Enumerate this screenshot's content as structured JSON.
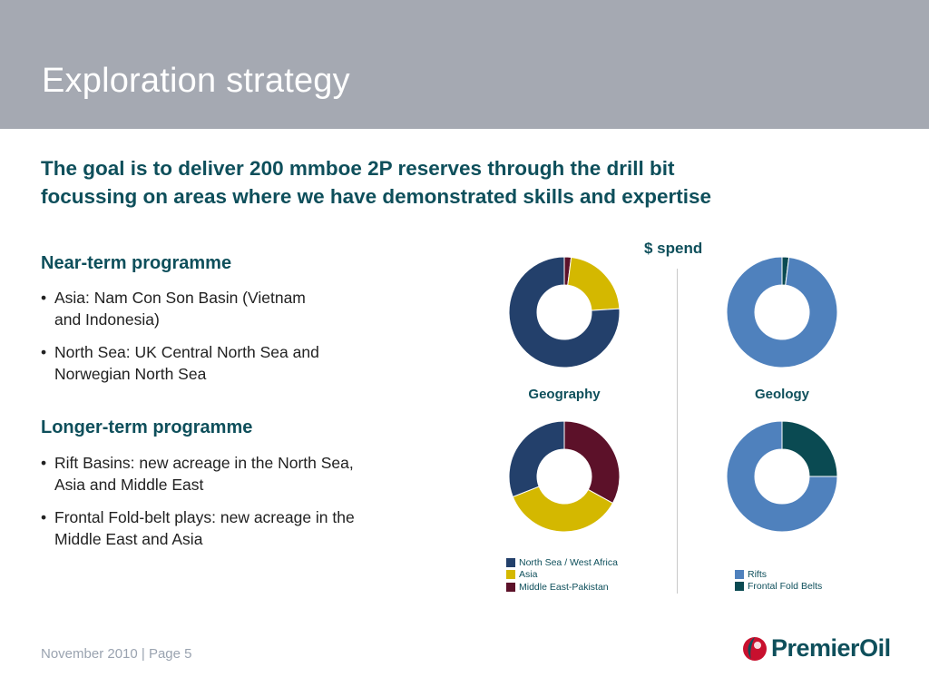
{
  "header": {
    "title": "Exploration strategy"
  },
  "subtitle": {
    "line1": "The goal is to deliver 200 mmboe 2P reserves through the drill bit",
    "line2": "focussing on areas where we have demonstrated skills and expertise"
  },
  "near_term": {
    "heading": "Near-term programme",
    "bullets": [
      [
        "Asia: Nam Con Son Basin (Vietnam",
        "and Indonesia)"
      ],
      [
        "North Sea: UK Central North Sea and",
        "Norwegian North Sea"
      ]
    ]
  },
  "longer_term": {
    "heading": "Longer-term programme",
    "bullets": [
      [
        "Rift Basins: new acreage in the North Sea,",
        "Asia and Middle East"
      ],
      [
        "Frontal Fold-belt plays: new acreage in the",
        "Middle East and Asia"
      ]
    ]
  },
  "bullet_glyph": "•",
  "spend_label": "$ spend",
  "geography_caption": "Geography",
  "geology_caption": "Geology",
  "chart_data": [
    {
      "type": "pie",
      "group": "Geography",
      "row": "top",
      "title": "",
      "slices": [
        {
          "category": "Middle East-Pakistan",
          "value": 2,
          "color": "#5c1129"
        },
        {
          "category": "Asia",
          "value": 22,
          "color": "#d4b800"
        },
        {
          "category": "North Sea / West Africa",
          "value": 76,
          "color": "#23406b"
        }
      ]
    },
    {
      "type": "pie",
      "group": "Geology",
      "row": "top",
      "title": "",
      "slices": [
        {
          "category": "Frontal Fold Belts",
          "value": 2,
          "color": "#0a4a52"
        },
        {
          "category": "Rifts",
          "value": 98,
          "color": "#4f81bd"
        }
      ]
    },
    {
      "type": "pie",
      "group": "Geography",
      "row": "bottom",
      "title": "",
      "slices": [
        {
          "category": "Middle East-Pakistan",
          "value": 33,
          "color": "#5c1129"
        },
        {
          "category": "Asia",
          "value": 36,
          "color": "#d4b800"
        },
        {
          "category": "North Sea / West Africa",
          "value": 31,
          "color": "#23406b"
        }
      ]
    },
    {
      "type": "pie",
      "group": "Geology",
      "row": "bottom",
      "title": "",
      "slices": [
        {
          "category": "Frontal Fold Belts",
          "value": 25,
          "color": "#0a4a52"
        },
        {
          "category": "Rifts",
          "value": 75,
          "color": "#4f81bd"
        }
      ]
    }
  ],
  "legend_geography": [
    {
      "label": "North Sea / West Africa",
      "color": "#23406b"
    },
    {
      "label": "Asia",
      "color": "#d4b800"
    },
    {
      "label": "Middle East-Pakistan",
      "color": "#5c1129"
    }
  ],
  "legend_geology": [
    {
      "label": "Rifts",
      "color": "#4f81bd"
    },
    {
      "label": "Frontal Fold Belts",
      "color": "#0a4a52"
    }
  ],
  "footer": {
    "text": "November 2010 | Page 5"
  },
  "logo": {
    "text": "PremierOil",
    "icon": "premier-oil-drop-icon",
    "colors": {
      "primary": "#c8102e",
      "secondary": "#0e4f5b"
    }
  },
  "colors": {
    "header_bg": "#a5a9b2",
    "accent_text": "#0e4f5b"
  }
}
